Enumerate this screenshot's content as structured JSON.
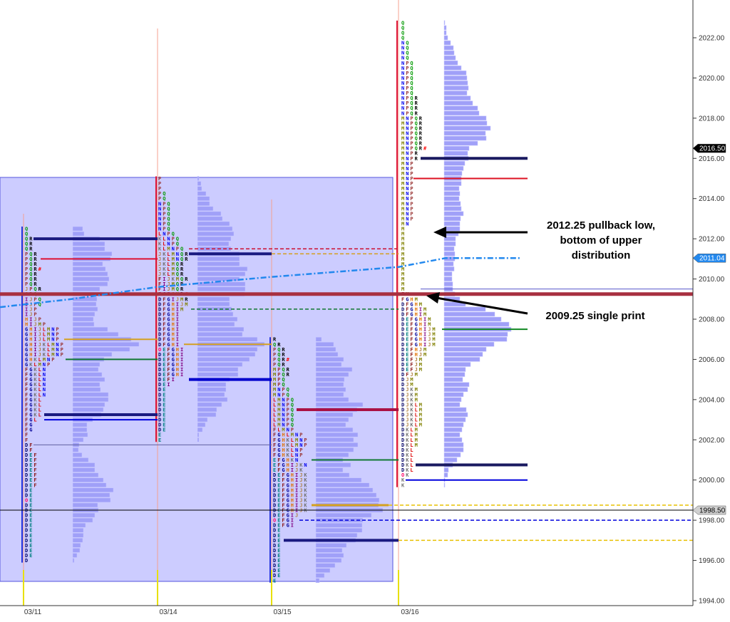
{
  "chart_data": {
    "type": "market-profile",
    "title": "",
    "xlabel": "",
    "ylabel": "",
    "ylim": [
      1993.5,
      2023.5
    ],
    "tick_step": 0.25,
    "y_ticks": [
      "2022.00",
      "2020.00",
      "2018.00",
      "2016.00",
      "2014.00",
      "2012.00",
      "2010.00",
      "2008.00",
      "2006.00",
      "2004.00",
      "2002.00",
      "2000.00",
      "1998.00",
      "1996.00",
      "1994.00"
    ],
    "grid": false,
    "letter_colors": {
      "D": "#000066",
      "E": "#008080",
      "F": "#8b1a1a",
      "G": "#000099",
      "H": "#e07000",
      "I": "#800080",
      "J": "#b08040",
      "K": "#707070",
      "L": "#dd0000",
      "M": "#808000",
      "N": "#0000ee",
      "O": "#ff0066",
      "P": "#993333",
      "Q": "#009900",
      "R": "#000000",
      "#": "#ff0000"
    },
    "bar_color": "#a0a0f8",
    "sessions": [
      {
        "date": "03/11",
        "top": 2012.5,
        "tpo_rows": [
          "Q",
          "Q",
          "QR",
          "QR",
          "QR",
          "PQR",
          "PQR",
          "PQR",
          "PQR#",
          "PQR",
          "PQR",
          "PQR",
          "JPQR",
          "JPQ",
          "IJPQ",
          "IJPQ",
          "IJP",
          "IJP",
          "HIJP",
          "HIJMP",
          "GHIJLMNP",
          "GHIJLMNP",
          "GHIJLMNP",
          "GHIJKLMNP",
          "GHIJKLMNP",
          "GHIJKLMNP",
          "GHKLMNP",
          "GKLMNP",
          "FGKLN",
          "FGKLN",
          "FGKLN",
          "FGKLN",
          "FGKLN",
          "FGKLN",
          "FGKL",
          "FGKL",
          "FGKL",
          "FGKL",
          "FGL",
          "FG",
          "FG",
          "F",
          "F",
          "DF",
          "DF",
          "DEF",
          "DEF",
          "DEF",
          "DEF",
          "DEF",
          "DEF",
          "DEF",
          "DE",
          "DE",
          "OE",
          "DE",
          "DE",
          "DE",
          "DE",
          "DE",
          "DE",
          "DE",
          "DE",
          "DE",
          "DE",
          "DE",
          "D"
        ],
        "volume": [
          14,
          16,
          38,
          45,
          45,
          55,
          53,
          42,
          46,
          49,
          51,
          49,
          38,
          41,
          34,
          33,
          35,
          31,
          29,
          30,
          49,
          64,
          82,
          93,
          80,
          55,
          44,
          38,
          36,
          41,
          45,
          38,
          39,
          50,
          50,
          45,
          43,
          40,
          28,
          20,
          20,
          21,
          15,
          9,
          8,
          13,
          22,
          31,
          31,
          36,
          43,
          47,
          57,
          52,
          53,
          35,
          36,
          31,
          28,
          18,
          15,
          15,
          14,
          11,
          10,
          6,
          2
        ]
      },
      {
        "date": "03/14",
        "top": 2015.0,
        "tpo_rows": [
          "P",
          "P",
          "P",
          "PQ",
          "PQ",
          "NPQ",
          "NPQ",
          "NPQ",
          "NPQ",
          "NPQ",
          "NPQ",
          "LNPQ",
          "KLNPQ",
          "KLNPQ",
          "KLMNPQ",
          "JKLMNQR",
          "JKLMNQR",
          "JKLMQR",
          "JKLMQR",
          "JKLMQR",
          "FIJKMQR",
          "FIJMQR",
          "FIJMQR",
          "FGIJMR#",
          "DFGIJMR",
          "DFGHIJM",
          "DFGHIM",
          "DFGHI",
          "DFGHI",
          "DFGHI",
          "DFGHI",
          "DFGHI",
          "DFGHI",
          "DFGHI",
          "OEFGHI",
          "DEFGHI",
          "DEFGHI",
          "DEFGHI",
          "DEFGHI",
          "DEFGHI",
          "DEFI",
          "DEI",
          "DE",
          "DE",
          "DE",
          "DE",
          "DE",
          "DE",
          "DE",
          "DE",
          "DE",
          "E",
          "E"
        ],
        "volume": [
          2,
          5,
          6,
          12,
          17,
          17,
          22,
          33,
          35,
          45,
          49,
          51,
          47,
          44,
          47,
          59,
          59,
          59,
          70,
          67,
          59,
          67,
          67,
          66,
          45,
          45,
          48,
          50,
          56,
          52,
          65,
          63,
          84,
          94,
          84,
          81,
          73,
          63,
          57,
          57,
          45,
          40,
          40,
          38,
          42,
          34,
          27,
          26,
          14,
          11,
          7,
          2,
          2
        ]
      },
      {
        "date": "03/15",
        "top": 2007.0,
        "tpo_rows": [
          "R",
          "QR",
          "PQR",
          "PQR",
          "PQR#",
          "PQR",
          "MPQR",
          "MPQR",
          "MPQ",
          "MPQ",
          "MNPQ",
          "MNPQ",
          "LMNPQ",
          "LMNPQ",
          "LMNPQ",
          "LMNPQ",
          "LMNPQ",
          "LMNPQ",
          "FLMNP",
          "FGHLMNP",
          "FGHKLMNP",
          "FGHKLMNP",
          "FGHKLNP",
          "FGHKLNP",
          "EFGHKN",
          "EFGHIJKN",
          "EFGHIJK",
          "DEFGHIJK",
          "DEFGHIJK",
          "DEFGHIJK",
          "DEFGHIJK",
          "DEFGHIJK",
          "DEFGHIJK",
          "DEFGHIJK",
          "DEFGHIJK",
          "DEFGIJ",
          "OEFGI",
          "DEFGI",
          "DE",
          "DE",
          "DE",
          "DE",
          "DE",
          "DE",
          "DE",
          "DE",
          "DE",
          "DE",
          "E"
        ],
        "volume": [
          8,
          25,
          28,
          31,
          39,
          36,
          51,
          46,
          40,
          39,
          42,
          39,
          46,
          66,
          58,
          52,
          46,
          42,
          52,
          59,
          53,
          59,
          53,
          46,
          38,
          49,
          38,
          47,
          64,
          75,
          80,
          85,
          89,
          88,
          94,
          78,
          66,
          65,
          65,
          58,
          56,
          43,
          37,
          39,
          36,
          27,
          20,
          12,
          5
        ]
      },
      {
        "date": "03/16",
        "top": 2022.75,
        "tpo_rows": [
          "Q",
          "Q",
          "Q",
          "Q",
          "NQ",
          "NQ",
          "NQ",
          "NQ",
          "NPQ",
          "NPQ",
          "NPQ",
          "NPQ",
          "NPQ",
          "NPQ",
          "NPQ",
          "NPQR",
          "NPQR",
          "NPQR",
          "NPQR",
          "MNPQR",
          "MNPQR",
          "MNPQR",
          "MNPQR",
          "MNPQR",
          "MNPQR",
          "MNPQR#",
          "MNPR",
          "MNPR",
          "MNP",
          "MNP",
          "MNP",
          "MNP",
          "MNP",
          "MNP",
          "MNP",
          "MNP",
          "MNP",
          "MNP",
          "MNP",
          "MNP",
          "MN",
          "M",
          "M",
          "M",
          "M",
          "M",
          "M",
          "M",
          "M",
          "M",
          "M",
          "M",
          "M",
          "M",
          "FM",
          "FGHM",
          "DFGHM",
          "DFGHIM",
          "DFGHIM",
          "DEFGHIM",
          "DEFGHIM",
          "DEFGHIJM",
          "DEFGHIJM",
          "DEFGHIJM",
          "DEFGHIJM",
          "DEFHJM",
          "DEFHJM",
          "DEFJM",
          "DEFJM",
          "DEFJM",
          "DFJM",
          "DJM",
          "DJM",
          "DJKM",
          "DJKM",
          "DJKM",
          "DJKLM",
          "DJKLM",
          "DJKLM",
          "DJKLM",
          "DJKLM",
          "DKLM",
          "DKLM",
          "DKLM",
          "DKLM",
          "DKL",
          "DKL",
          "DKL",
          "DKL",
          "DKL",
          "OK",
          "K",
          "K"
        ],
        "volume": [
          1,
          3,
          3,
          5,
          9,
          13,
          14,
          16,
          19,
          24,
          31,
          32,
          33,
          34,
          32,
          37,
          40,
          47,
          49,
          59,
          60,
          65,
          58,
          59,
          47,
          35,
          33,
          34,
          29,
          27,
          25,
          24,
          24,
          21,
          22,
          21,
          23,
          24,
          27,
          23,
          22,
          22,
          20,
          16,
          16,
          14,
          15,
          15,
          13,
          14,
          11,
          11,
          12,
          12,
          15,
          22,
          30,
          58,
          71,
          80,
          91,
          94,
          89,
          88,
          70,
          59,
          54,
          50,
          37,
          30,
          29,
          26,
          35,
          33,
          27,
          24,
          22,
          31,
          33,
          30,
          27,
          25,
          22,
          25,
          27,
          27,
          23,
          18,
          12,
          6,
          5,
          1,
          1
        ]
      }
    ],
    "levels": [
      {
        "price": 2012.0,
        "color": "#1a1a80",
        "style": "solid",
        "weight": 4
      },
      {
        "price": 2003.25,
        "color": "#1a1a80",
        "style": "solid",
        "weight": 4
      },
      {
        "price": 2003.0,
        "color": "#0000dd",
        "style": "solid",
        "weight": 2
      },
      {
        "price": 2011.0,
        "color": "#dd1133",
        "style": "solid",
        "weight": 2
      },
      {
        "price": 2007.0,
        "color": "#d4a020",
        "style": "solid",
        "weight": 2
      },
      {
        "price": 2006.0,
        "color": "#117733",
        "style": "solid",
        "weight": 2
      },
      {
        "price": 2001.75,
        "color": "#6060a0",
        "style": "solid",
        "weight": 1
      },
      {
        "price": 2011.25,
        "color": "#1a1a80",
        "style": "solid",
        "weight": 4
      },
      {
        "price": 2005.0,
        "color": "#0000cc",
        "style": "solid",
        "weight": 4
      },
      {
        "price": 2006.75,
        "color": "#d4a020",
        "style": "solid",
        "weight": 2
      },
      {
        "price": 2011.5,
        "color": "#cc1133",
        "style": "dashed",
        "weight": 1.5
      },
      {
        "price": 2011.25,
        "color": "#d4a020",
        "style": "dashed",
        "weight": 1.5
      },
      {
        "price": 2008.5,
        "color": "#117733",
        "style": "dashed",
        "weight": 1.5
      },
      {
        "price": 1997.0,
        "color": "#1a1a80",
        "style": "solid",
        "weight": 4
      },
      {
        "price": 2003.5,
        "color": "#aa1144",
        "style": "solid",
        "weight": 4
      },
      {
        "price": 2001.0,
        "color": "#117733",
        "style": "solid",
        "weight": 2
      },
      {
        "price": 1998.75,
        "color": "#d4a020",
        "style": "solid",
        "weight": 3
      },
      {
        "price": 1998.75,
        "color": "#e8c000",
        "style": "dashed",
        "weight": 1.5
      },
      {
        "price": 1997.0,
        "color": "#e8c000",
        "style": "dashed",
        "weight": 1.5
      },
      {
        "price": 1998.0,
        "color": "#0000dd",
        "style": "dashed",
        "weight": 1.5
      },
      {
        "price": 1998.5,
        "color": "#000000",
        "style": "solid",
        "weight": 1
      },
      {
        "price": 2009.5,
        "color": "#5555cc",
        "style": "solid",
        "weight": 1
      },
      {
        "price": 2009.25,
        "color": "#a83040",
        "style": "solid",
        "weight": 5
      },
      {
        "price": 2016.0,
        "color": "#1a1a60",
        "style": "solid",
        "weight": 4
      },
      {
        "price": 2015.0,
        "color": "#dd1122",
        "style": "solid",
        "weight": 2
      },
      {
        "price": 2007.5,
        "color": "#118822",
        "style": "solid",
        "weight": 2
      },
      {
        "price": 2000.75,
        "color": "#1a1a60",
        "style": "solid",
        "weight": 4
      },
      {
        "price": 2000.0,
        "color": "#0000dd",
        "style": "solid",
        "weight": 2
      }
    ],
    "moving_average": {
      "color": "#2288ee",
      "values": [
        2008.6,
        2009.0,
        2009.6,
        2010.1,
        2010.6,
        2011.04,
        2011.04
      ]
    },
    "price_tags": [
      {
        "value": "2016.50",
        "price": 2016.5,
        "bg": "#000000",
        "fg": "#ffffff"
      },
      {
        "value": "2011.04",
        "price": 2011.04,
        "bg": "#2288ee",
        "fg": "#ffffff"
      },
      {
        "value": "1998.50",
        "price": 1998.5,
        "bg": "#d0d0d0",
        "fg": "#000000"
      }
    ],
    "highlight_box_color": "#ccccff",
    "annotations": [
      {
        "lines": [
          "2012.25 pullback low,",
          "bottom of upper",
          "distribution"
        ],
        "price": 2012.25
      },
      {
        "lines": [
          "2009.25 single print"
        ],
        "price": 2009.25
      }
    ]
  }
}
